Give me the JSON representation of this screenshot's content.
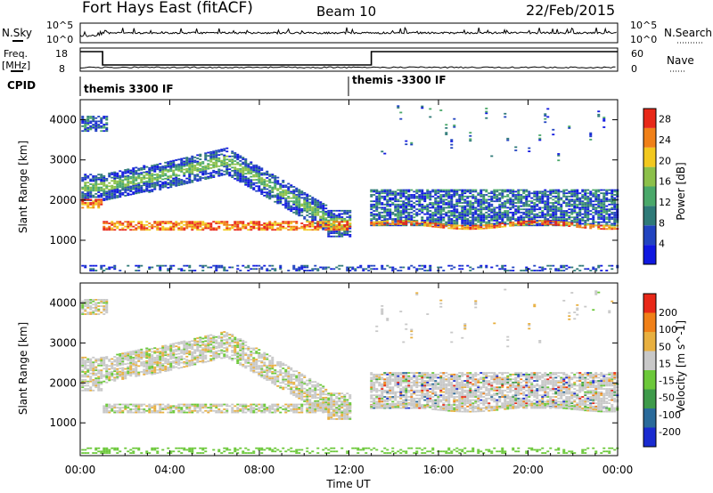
{
  "header": {
    "station": "Fort Hays East (fitACF)",
    "beam": "Beam 10",
    "date": "22/Feb/2015"
  },
  "panels": {
    "nsky_label": "N.Sky",
    "nsky_ticks": [
      "10^5",
      "10^0"
    ],
    "nsearch_label": "N.Search",
    "nsearch_ticks": [
      "10^5",
      "10^0"
    ],
    "freq_label_line1": "Freq.",
    "freq_label_line2": "[MHz]",
    "freq_ticks": [
      "18",
      "8"
    ],
    "nave_label": "Nave",
    "nave_ticks": [
      "60",
      "0"
    ],
    "cpid_label": "CPID",
    "cpid_segments": [
      {
        "label": "themis 3300 IF",
        "start_hour": 0
      },
      {
        "label": "themis -3300 IF",
        "start_hour": 12
      }
    ]
  },
  "chart_data": [
    {
      "type": "heatmap",
      "title": "",
      "xlabel": "Time UT",
      "ylabel": "Slant Range [km]",
      "x_ticks": [
        "00:00",
        "04:00",
        "08:00",
        "12:00",
        "16:00",
        "20:00",
        "00:00"
      ],
      "xlim_hours": [
        0,
        24
      ],
      "y_ticks": [
        1000,
        2000,
        3000,
        4000
      ],
      "ylim": [
        180,
        4500
      ],
      "colorbar_label": "Power [dB]",
      "colorbar_ticks": [
        4,
        8,
        12,
        16,
        20,
        24,
        28
      ],
      "colorbar_range": [
        0,
        30
      ],
      "colors": [
        "#1018e0",
        "#2244c0",
        "#2f7a78",
        "#4aa86a",
        "#8cc04a",
        "#f2c81e",
        "#f08018",
        "#e82818"
      ]
    },
    {
      "type": "heatmap",
      "title": "",
      "xlabel": "Time UT",
      "ylabel": "Slant Range [km]",
      "x_ticks": [
        "00:00",
        "04:00",
        "08:00",
        "12:00",
        "16:00",
        "20:00",
        "00:00"
      ],
      "xlim_hours": [
        0,
        24
      ],
      "y_ticks": [
        1000,
        2000,
        3000,
        4000
      ],
      "ylim": [
        180,
        4500
      ],
      "colorbar_label": "Velocity [m s^-1]",
      "colorbar_ticks": [
        200,
        100,
        50,
        15,
        -15,
        -50,
        -100,
        -200
      ],
      "colors": [
        "#1a2bd0",
        "#2a6a9a",
        "#3e9a4a",
        "#6cc83a",
        "#c8c8c8",
        "#e8b040",
        "#f08018",
        "#e82818"
      ]
    }
  ]
}
